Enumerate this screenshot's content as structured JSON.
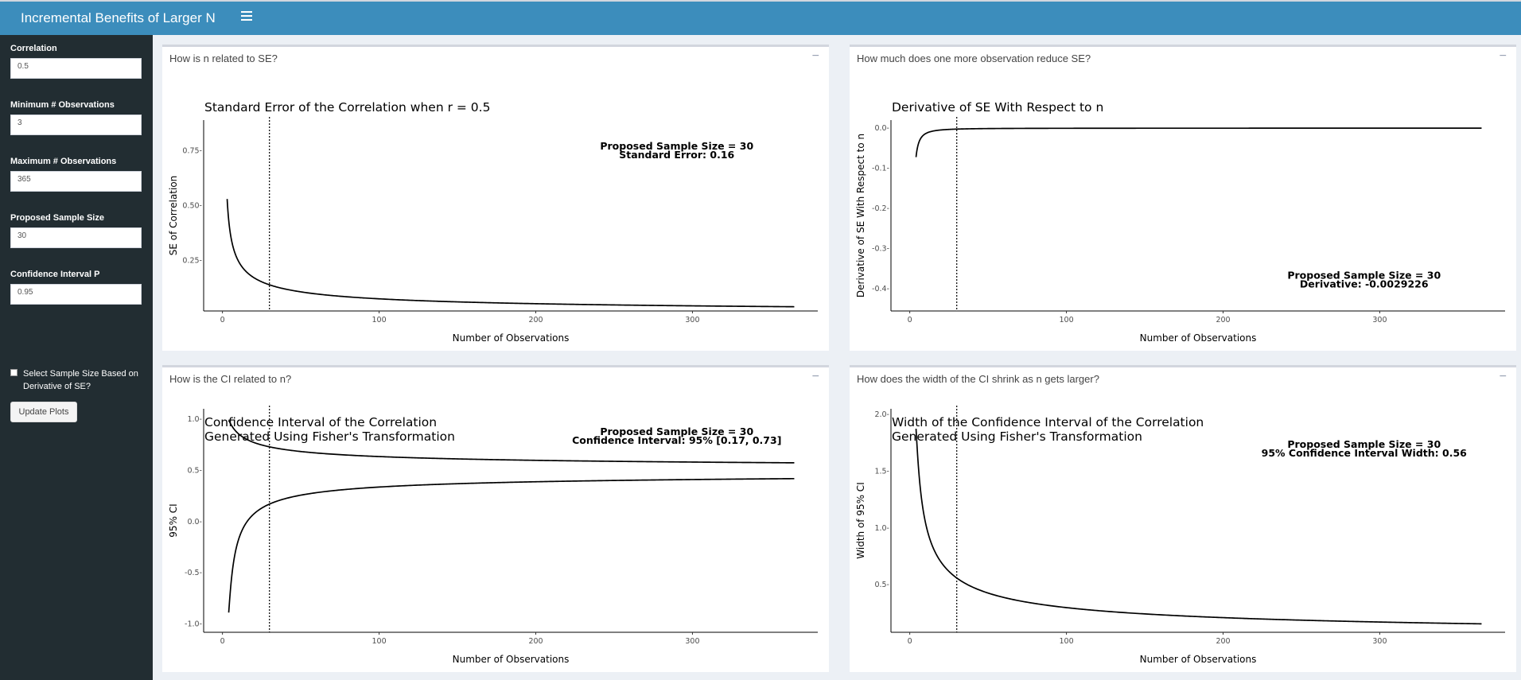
{
  "app": {
    "title": "Incremental Benefits of Larger N"
  },
  "sidebar": {
    "fields": [
      {
        "label": "Correlation",
        "value": "0.5"
      },
      {
        "label": "Minimum # Observations",
        "value": "3"
      },
      {
        "label": "Maximum # Observations",
        "value": "365"
      },
      {
        "label": "Proposed Sample Size",
        "value": "30"
      },
      {
        "label": "Confidence Interval P",
        "value": "0.95"
      }
    ],
    "checkbox_label": "Select Sample Size Based on Derivative of SE?",
    "button_label": "Update Plots"
  },
  "panels": [
    {
      "title": "How is n related to SE?",
      "minimize": "−"
    },
    {
      "title": "How much does one more observation reduce SE?",
      "minimize": "−"
    },
    {
      "title": "How is the CI related to n?",
      "minimize": "−"
    },
    {
      "title": "How does the width of the CI shrink as n gets larger?",
      "minimize": "−"
    }
  ],
  "chart_data": [
    {
      "type": "line",
      "title": "Standard Error of the Correlation when r =  0.5",
      "xlabel": "Number of Observations",
      "ylabel": "SE of Correlation",
      "x_range": [
        3,
        365
      ],
      "xlim": [
        -12,
        380
      ],
      "ylim": [
        0.02,
        0.89
      ],
      "xticks": [
        0,
        100,
        200,
        300
      ],
      "yticks": [
        0.25,
        0.5,
        0.75
      ],
      "ytick_labels": [
        "0.25-",
        "0.50-",
        "0.75-"
      ],
      "vline_x": 30,
      "curve": "se",
      "annotation": [
        "Proposed Sample Size = 30",
        "Standard Error: 0.16"
      ],
      "annotation_pos": [
        290,
        0.755
      ]
    },
    {
      "type": "line",
      "title": "Derivative of SE With Respect to n",
      "xlabel": "Number of Observations",
      "ylabel": "Derivative of SE With Respect to n",
      "x_range": [
        4,
        365
      ],
      "xlim": [
        -12,
        380
      ],
      "ylim": [
        -0.455,
        0.02
      ],
      "xticks": [
        0,
        100,
        200,
        300
      ],
      "yticks": [
        0,
        -0.1,
        -0.2,
        -0.3,
        -0.4
      ],
      "ytick_labels": [
        "0.0-",
        "-0.1-",
        "-0.2-",
        "-0.3-",
        "-0.4-"
      ],
      "vline_x": 30,
      "curve": "dse",
      "annotation": [
        "Proposed Sample Size = 30",
        "Derivative: -0.0029226"
      ],
      "annotation_pos": [
        290,
        -0.375
      ]
    },
    {
      "type": "line",
      "title": "Confidence Interval of the Correlation\nGenerated Using Fisher's Transformation",
      "xlabel": "Number of Observations",
      "ylabel": "95% CI",
      "x_range": [
        4,
        365
      ],
      "xlim": [
        -12,
        380
      ],
      "ylim": [
        -1.08,
        1.1
      ],
      "xticks": [
        0,
        100,
        200,
        300
      ],
      "yticks": [
        1.0,
        0.5,
        0.0,
        -0.5,
        -1.0
      ],
      "ytick_labels": [
        "1.0-",
        "0.5-",
        "0.0-",
        "-0.5-",
        "-1.0-"
      ],
      "vline_x": 30,
      "curve": "ci",
      "annotation": [
        "Proposed Sample Size = 30",
        "Confidence Interval: 95% [0.17, 0.73]"
      ],
      "annotation_pos": [
        290,
        0.845
      ]
    },
    {
      "type": "line",
      "title": "Width of the Confidence Interval of the Correlation\nGenerated Using Fisher's Transformation",
      "xlabel": "Number of Observations",
      "ylabel": "Width of 95% CI",
      "x_range": [
        4,
        365
      ],
      "xlim": [
        -12,
        380
      ],
      "ylim": [
        0.08,
        2.05
      ],
      "xticks": [
        0,
        100,
        200,
        300
      ],
      "yticks": [
        2.0,
        1.5,
        1.0,
        0.5
      ],
      "ytick_labels": [
        "2.0-",
        "1.5-",
        "1.0-",
        "0.5-"
      ],
      "vline_x": 30,
      "curve": "width",
      "annotation": [
        "Proposed Sample Size = 30",
        "95% Confidence Interval Width: 0.56"
      ],
      "annotation_pos": [
        290,
        1.705
      ]
    }
  ]
}
